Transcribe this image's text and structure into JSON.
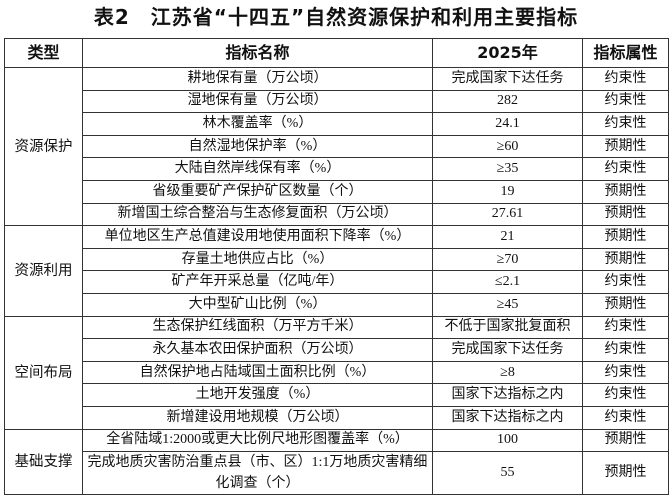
{
  "title": "表2　江苏省“十四五”自然资源保护和利用主要指标",
  "headers": [
    "类型",
    "指标名称",
    "2025年",
    "指标属性"
  ],
  "groups": [
    {
      "type": "资源保护",
      "rows": [
        {
          "name": "耕地保有量（万公顷）",
          "value": "完成国家下达任务",
          "attr": "约束性"
        },
        {
          "name": "湿地保有量（万公顷）",
          "value": "282",
          "attr": "约束性"
        },
        {
          "name": "林木覆盖率（%）",
          "value": "24.1",
          "attr": "约束性"
        },
        {
          "name": "自然湿地保护率（%）",
          "value": "≥60",
          "attr": "预期性"
        },
        {
          "name": "大陆自然岸线保有率（%）",
          "value": "≥35",
          "attr": "约束性"
        },
        {
          "name": "省级重要矿产保护矿区数量（个）",
          "value": "19",
          "attr": "预期性"
        },
        {
          "name": "新增国土综合整治与生态修复面积（万公顷）",
          "value": "27.61",
          "attr": "预期性"
        }
      ]
    },
    {
      "type": "资源利用",
      "rows": [
        {
          "name": "单位地区生产总值建设用地使用面积下降率（%）",
          "value": "21",
          "attr": "预期性"
        },
        {
          "name": "存量土地供应占比（%）",
          "value": "≥70",
          "attr": "预期性"
        },
        {
          "name": "矿产年开采总量（亿吨/年）",
          "value": "≤2.1",
          "attr": "约束性"
        },
        {
          "name": "大中型矿山比例（%）",
          "value": "≥45",
          "attr": "预期性"
        }
      ]
    },
    {
      "type": "空间布局",
      "rows": [
        {
          "name": "生态保护红线面积（万平方千米）",
          "value": "不低于国家批复面积",
          "attr": "约束性"
        },
        {
          "name": "永久基本农田保护面积（万公顷）",
          "value": "完成国家下达任务",
          "attr": "约束性"
        },
        {
          "name": "自然保护地占陆域国土面积比例（%）",
          "value": "≥8",
          "attr": "约束性"
        },
        {
          "name": "土地开发强度（%）",
          "value": "国家下达指标之内",
          "attr": "约束性"
        },
        {
          "name": "新增建设用地规模（万公顷）",
          "value": "国家下达指标之内",
          "attr": "约束性"
        }
      ]
    },
    {
      "type": "基础支撑",
      "rows": [
        {
          "name": "全省陆域1:2000或更大比例尺地形图覆盖率（%）",
          "value": "100",
          "attr": "预期性"
        },
        {
          "name": "完成地质灾害防治重点县（市、区）1:1万地质灾害精细化调查（个）",
          "value": "55",
          "attr": "预期性"
        }
      ]
    }
  ]
}
